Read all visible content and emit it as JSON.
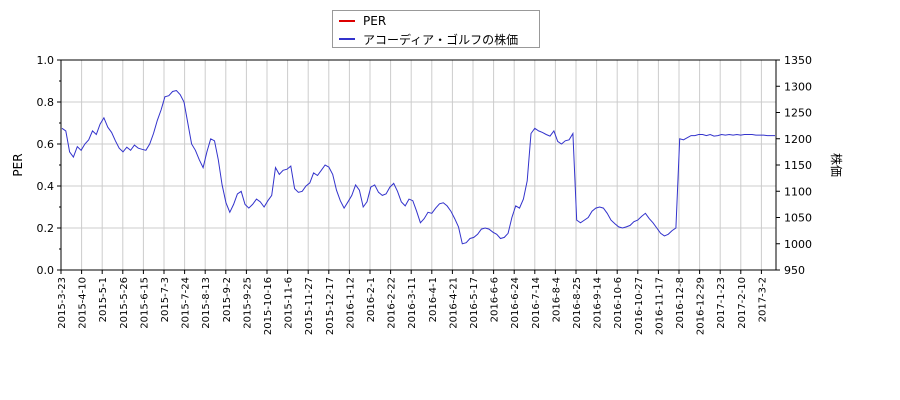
{
  "chart_data": {
    "type": "line",
    "title": "",
    "ylabel_left": "PER",
    "ylabel_right": "株価",
    "ylim_left": [
      0.0,
      1.0
    ],
    "ylim_right": [
      950,
      1350
    ],
    "yticks_left": [
      "0.0",
      "0.2",
      "0.4",
      "0.6",
      "0.8",
      "1.0"
    ],
    "yticks_right": [
      "950",
      "1000",
      "1050",
      "1100",
      "1150",
      "1200",
      "1250",
      "1300",
      "1350"
    ],
    "xticks": [
      "2015-3-23",
      "2015-4-10",
      "2015-5-1",
      "2015-5-26",
      "2015-6-15",
      "2015-7-3",
      "2015-7-24",
      "2015-8-13",
      "2015-9-2",
      "2015-9-25",
      "2015-10-16",
      "2015-11-6",
      "2015-11-27",
      "2015-12-17",
      "2016-1-12",
      "2016-2-1",
      "2016-2-22",
      "2016-3-11",
      "2016-4-1",
      "2016-4-21",
      "2016-5-17",
      "2016-6-6",
      "2016-6-24",
      "2016-7-14",
      "2016-8-4",
      "2016-8-25",
      "2016-9-14",
      "2016-10-6",
      "2016-10-27",
      "2016-11-17",
      "2016-12-8",
      "2016-12-29",
      "2017-1-23",
      "2017-2-10",
      "2017-3-2"
    ],
    "grid": true,
    "legend_position": "top-center",
    "series": [
      {
        "name": "PER",
        "axis": "left",
        "color": "#dd0000",
        "values": []
      },
      {
        "name": "アコーディア・ゴルフの株価",
        "axis": "right",
        "color": "#3333cc",
        "points": [
          [
            0,
            1220
          ],
          [
            1,
            1215
          ],
          [
            2,
            1175
          ],
          [
            3,
            1165
          ],
          [
            4,
            1185
          ],
          [
            5,
            1178
          ],
          [
            6,
            1190
          ],
          [
            7,
            1198
          ],
          [
            8,
            1215
          ],
          [
            9,
            1208
          ],
          [
            10,
            1228
          ],
          [
            11,
            1240
          ],
          [
            12,
            1222
          ],
          [
            13,
            1212
          ],
          [
            14,
            1196
          ],
          [
            15,
            1182
          ],
          [
            16,
            1175
          ],
          [
            17,
            1184
          ],
          [
            18,
            1178
          ],
          [
            19,
            1188
          ],
          [
            20,
            1182
          ],
          [
            21,
            1180
          ],
          [
            22,
            1178
          ],
          [
            23,
            1190
          ],
          [
            24,
            1210
          ],
          [
            25,
            1235
          ],
          [
            26,
            1255
          ],
          [
            27,
            1280
          ],
          [
            28,
            1282
          ],
          [
            29,
            1290
          ],
          [
            30,
            1292
          ],
          [
            31,
            1284
          ],
          [
            32,
            1270
          ],
          [
            33,
            1230
          ],
          [
            34,
            1190
          ],
          [
            35,
            1178
          ],
          [
            36,
            1160
          ],
          [
            37,
            1145
          ],
          [
            38,
            1175
          ],
          [
            39,
            1200
          ],
          [
            40,
            1196
          ],
          [
            41,
            1160
          ],
          [
            42,
            1112
          ],
          [
            43,
            1078
          ],
          [
            44,
            1060
          ],
          [
            45,
            1075
          ],
          [
            46,
            1095
          ],
          [
            47,
            1100
          ],
          [
            48,
            1075
          ],
          [
            49,
            1068
          ],
          [
            50,
            1075
          ],
          [
            51,
            1085
          ],
          [
            52,
            1080
          ],
          [
            53,
            1070
          ],
          [
            54,
            1082
          ],
          [
            55,
            1092
          ],
          [
            56,
            1145
          ],
          [
            57,
            1132
          ],
          [
            58,
            1140
          ],
          [
            59,
            1142
          ],
          [
            60,
            1148
          ],
          [
            61,
            1105
          ],
          [
            62,
            1098
          ],
          [
            63,
            1100
          ],
          [
            64,
            1110
          ],
          [
            65,
            1116
          ],
          [
            66,
            1135
          ],
          [
            67,
            1130
          ],
          [
            68,
            1140
          ],
          [
            69,
            1150
          ],
          [
            70,
            1146
          ],
          [
            71,
            1132
          ],
          [
            72,
            1102
          ],
          [
            73,
            1082
          ],
          [
            74,
            1068
          ],
          [
            75,
            1080
          ],
          [
            76,
            1092
          ],
          [
            77,
            1112
          ],
          [
            78,
            1102
          ],
          [
            79,
            1070
          ],
          [
            80,
            1080
          ],
          [
            81,
            1108
          ],
          [
            82,
            1112
          ],
          [
            83,
            1098
          ],
          [
            84,
            1092
          ],
          [
            85,
            1095
          ],
          [
            86,
            1108
          ],
          [
            87,
            1115
          ],
          [
            88,
            1100
          ],
          [
            89,
            1080
          ],
          [
            90,
            1072
          ],
          [
            91,
            1085
          ],
          [
            92,
            1082
          ],
          [
            93,
            1062
          ],
          [
            94,
            1040
          ],
          [
            95,
            1048
          ],
          [
            96,
            1060
          ],
          [
            97,
            1058
          ],
          [
            98,
            1068
          ],
          [
            99,
            1076
          ],
          [
            100,
            1078
          ],
          [
            101,
            1072
          ],
          [
            102,
            1062
          ],
          [
            103,
            1048
          ],
          [
            104,
            1032
          ],
          [
            105,
            1000
          ],
          [
            106,
            1002
          ],
          [
            107,
            1010
          ],
          [
            108,
            1012
          ],
          [
            109,
            1018
          ],
          [
            110,
            1028
          ],
          [
            111,
            1030
          ],
          [
            112,
            1028
          ],
          [
            113,
            1022
          ],
          [
            114,
            1018
          ],
          [
            115,
            1010
          ],
          [
            116,
            1012
          ],
          [
            117,
            1020
          ],
          [
            118,
            1050
          ],
          [
            119,
            1072
          ],
          [
            120,
            1068
          ],
          [
            121,
            1085
          ],
          [
            122,
            1120
          ],
          [
            123,
            1210
          ],
          [
            124,
            1220
          ],
          [
            125,
            1215
          ],
          [
            126,
            1212
          ],
          [
            127,
            1208
          ],
          [
            128,
            1205
          ],
          [
            129,
            1215
          ],
          [
            130,
            1195
          ],
          [
            131,
            1190
          ],
          [
            132,
            1196
          ],
          [
            133,
            1198
          ],
          [
            134,
            1210
          ],
          [
            135,
            1045
          ],
          [
            136,
            1040
          ],
          [
            137,
            1045
          ],
          [
            138,
            1050
          ],
          [
            139,
            1062
          ],
          [
            140,
            1068
          ],
          [
            141,
            1070
          ],
          [
            142,
            1068
          ],
          [
            143,
            1058
          ],
          [
            144,
            1045
          ],
          [
            145,
            1038
          ],
          [
            146,
            1032
          ],
          [
            147,
            1030
          ],
          [
            148,
            1032
          ],
          [
            149,
            1035
          ],
          [
            150,
            1042
          ],
          [
            151,
            1045
          ],
          [
            152,
            1052
          ],
          [
            153,
            1058
          ],
          [
            154,
            1048
          ],
          [
            155,
            1040
          ],
          [
            156,
            1030
          ],
          [
            157,
            1020
          ],
          [
            158,
            1015
          ],
          [
            159,
            1018
          ],
          [
            160,
            1025
          ],
          [
            161,
            1030
          ],
          [
            162,
            1200
          ],
          [
            163,
            1198
          ],
          [
            164,
            1202
          ],
          [
            165,
            1206
          ],
          [
            166,
            1206
          ],
          [
            167,
            1208
          ],
          [
            168,
            1208
          ],
          [
            169,
            1206
          ],
          [
            170,
            1208
          ],
          [
            171,
            1205
          ],
          [
            172,
            1206
          ],
          [
            173,
            1208
          ],
          [
            174,
            1207
          ],
          [
            175,
            1208
          ],
          [
            176,
            1207
          ],
          [
            177,
            1208
          ],
          [
            178,
            1207
          ],
          [
            179,
            1208
          ],
          [
            180,
            1208
          ],
          [
            181,
            1208
          ],
          [
            182,
            1207
          ],
          [
            183,
            1207
          ],
          [
            184,
            1207
          ],
          [
            185,
            1206
          ],
          [
            186,
            1206
          ],
          [
            187,
            1206
          ]
        ]
      }
    ]
  },
  "legend": {
    "per_label": "PER",
    "price_label": "アコーディア・ゴルフの株価"
  }
}
